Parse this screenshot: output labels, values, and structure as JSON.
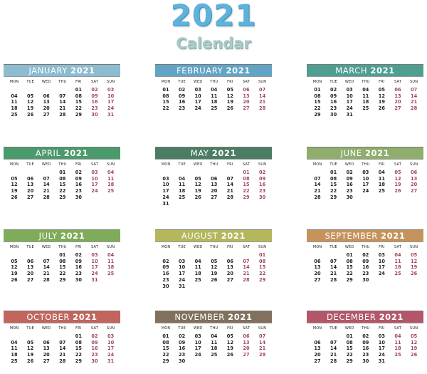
{
  "header": {
    "year": "2021",
    "subtitle": "Calendar"
  },
  "weekdays": [
    "MON",
    "TUE",
    "WED",
    "THU",
    "FRI",
    "SAT",
    "SUN"
  ],
  "colors": {
    "weekend": "#a0465a",
    "text": "#222222"
  },
  "months": [
    {
      "name": "JANUARY",
      "year": "2021",
      "color": "#8dbcd0",
      "offset": 4,
      "days": 31
    },
    {
      "name": "FEBRUARY",
      "year": "2021",
      "color": "#62a4c6",
      "offset": 0,
      "days": 28
    },
    {
      "name": "MARCH",
      "year": "2021",
      "color": "#4f9f91",
      "offset": 0,
      "days": 31
    },
    {
      "name": "APRIL",
      "year": "2021",
      "color": "#4a9a6c",
      "offset": 3,
      "days": 30
    },
    {
      "name": "MAY",
      "year": "2021",
      "color": "#4a7d64",
      "offset": 5,
      "days": 31
    },
    {
      "name": "JUNE",
      "year": "2021",
      "color": "#8fae6e",
      "offset": 1,
      "days": 30
    },
    {
      "name": "JULY",
      "year": "2021",
      "color": "#7fac58",
      "offset": 3,
      "days": 31
    },
    {
      "name": "AUGUST",
      "year": "2021",
      "color": "#b4b75a",
      "offset": 6,
      "days": 31
    },
    {
      "name": "SEPTEMBER",
      "year": "2021",
      "color": "#c5925a",
      "offset": 2,
      "days": 30
    },
    {
      "name": "OCTOBER",
      "year": "2021",
      "color": "#c2655c",
      "offset": 4,
      "days": 31
    },
    {
      "name": "NOVEMBER",
      "year": "2021",
      "color": "#82705c",
      "offset": 0,
      "days": 30
    },
    {
      "name": "DECEMBER",
      "year": "2021",
      "color": "#b4566a",
      "offset": 2,
      "days": 31
    }
  ]
}
